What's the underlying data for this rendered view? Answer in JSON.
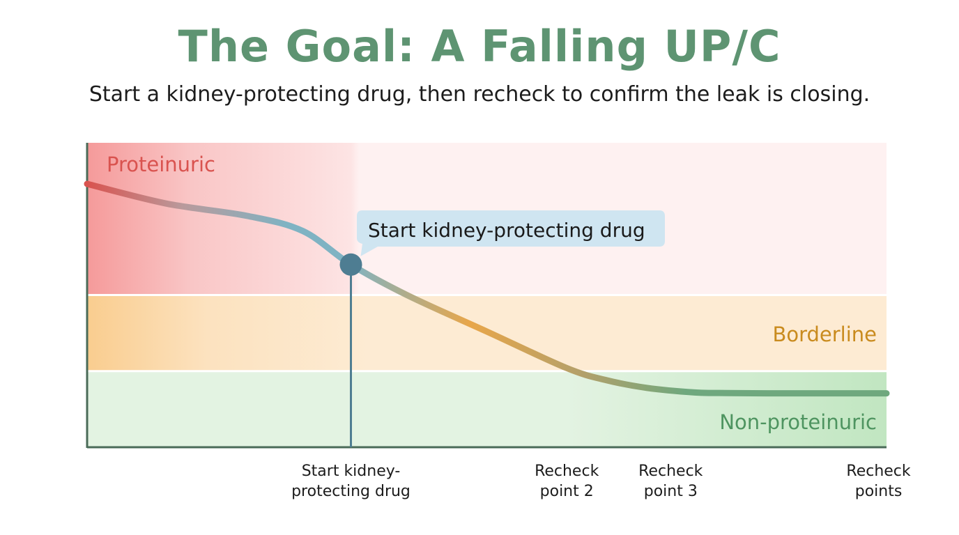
{
  "header": {
    "title": "The Goal: A Falling UP/C",
    "subtitle": "Start a kidney-protecting drug, then recheck to confirm the leak is closing."
  },
  "colors": {
    "title": "#5e9472",
    "proteinuric": "#d9534f",
    "proteinuric_band": "#fdeeee",
    "borderline": "#c98b1e",
    "borderline_band": "#fdebd3",
    "non_proteinuric": "#4e9460",
    "non_proteinuric_band": "#e3f3e2",
    "line_start": "#d9534f",
    "line_mid": "#7fb3c3",
    "line_orange": "#e8a64a",
    "line_end": "#6fa87e",
    "marker": "#4e7d92",
    "axis": "#4a6b58",
    "callout_bg": "#cfe5f1"
  },
  "chart_data": {
    "type": "line",
    "title": "The Goal: A Falling UP/C",
    "xlabel": "",
    "ylabel": "",
    "xlim": [
      0,
      10
    ],
    "ylim": [
      0,
      10
    ],
    "zones": [
      {
        "name": "Proteinuric",
        "from": 5,
        "to": 10
      },
      {
        "name": "Borderline",
        "from": 2.5,
        "to": 5
      },
      {
        "name": "Non-proteinuric",
        "from": 0,
        "to": 2.5
      }
    ],
    "series": [
      {
        "x": [
          0,
          1,
          2,
          2.7,
          3.3,
          4.0,
          5.0,
          6.0,
          6.5,
          7.0,
          7.6,
          8.0,
          8.5,
          9.0,
          10.0
        ],
        "y": [
          8.65,
          8.0,
          7.6,
          7.1,
          6.0,
          5.0,
          3.8,
          2.6,
          2.2,
          1.95,
          1.8,
          1.78,
          1.77,
          1.77,
          1.77
        ]
      }
    ],
    "marker": {
      "x": 3.3,
      "y": 6.0,
      "label": "Start kidney-protecting drug"
    },
    "x_ticks": [
      {
        "x": 3.3,
        "label": "Start kidney-\nprotecting drug"
      },
      {
        "x": 6.0,
        "label": "Recheck\npoint 2"
      },
      {
        "x": 7.3,
        "label": "Recheck\npoint 3"
      },
      {
        "x": 9.9,
        "label": "Recheck\npoints"
      }
    ],
    "grid": false,
    "legend": "none"
  }
}
